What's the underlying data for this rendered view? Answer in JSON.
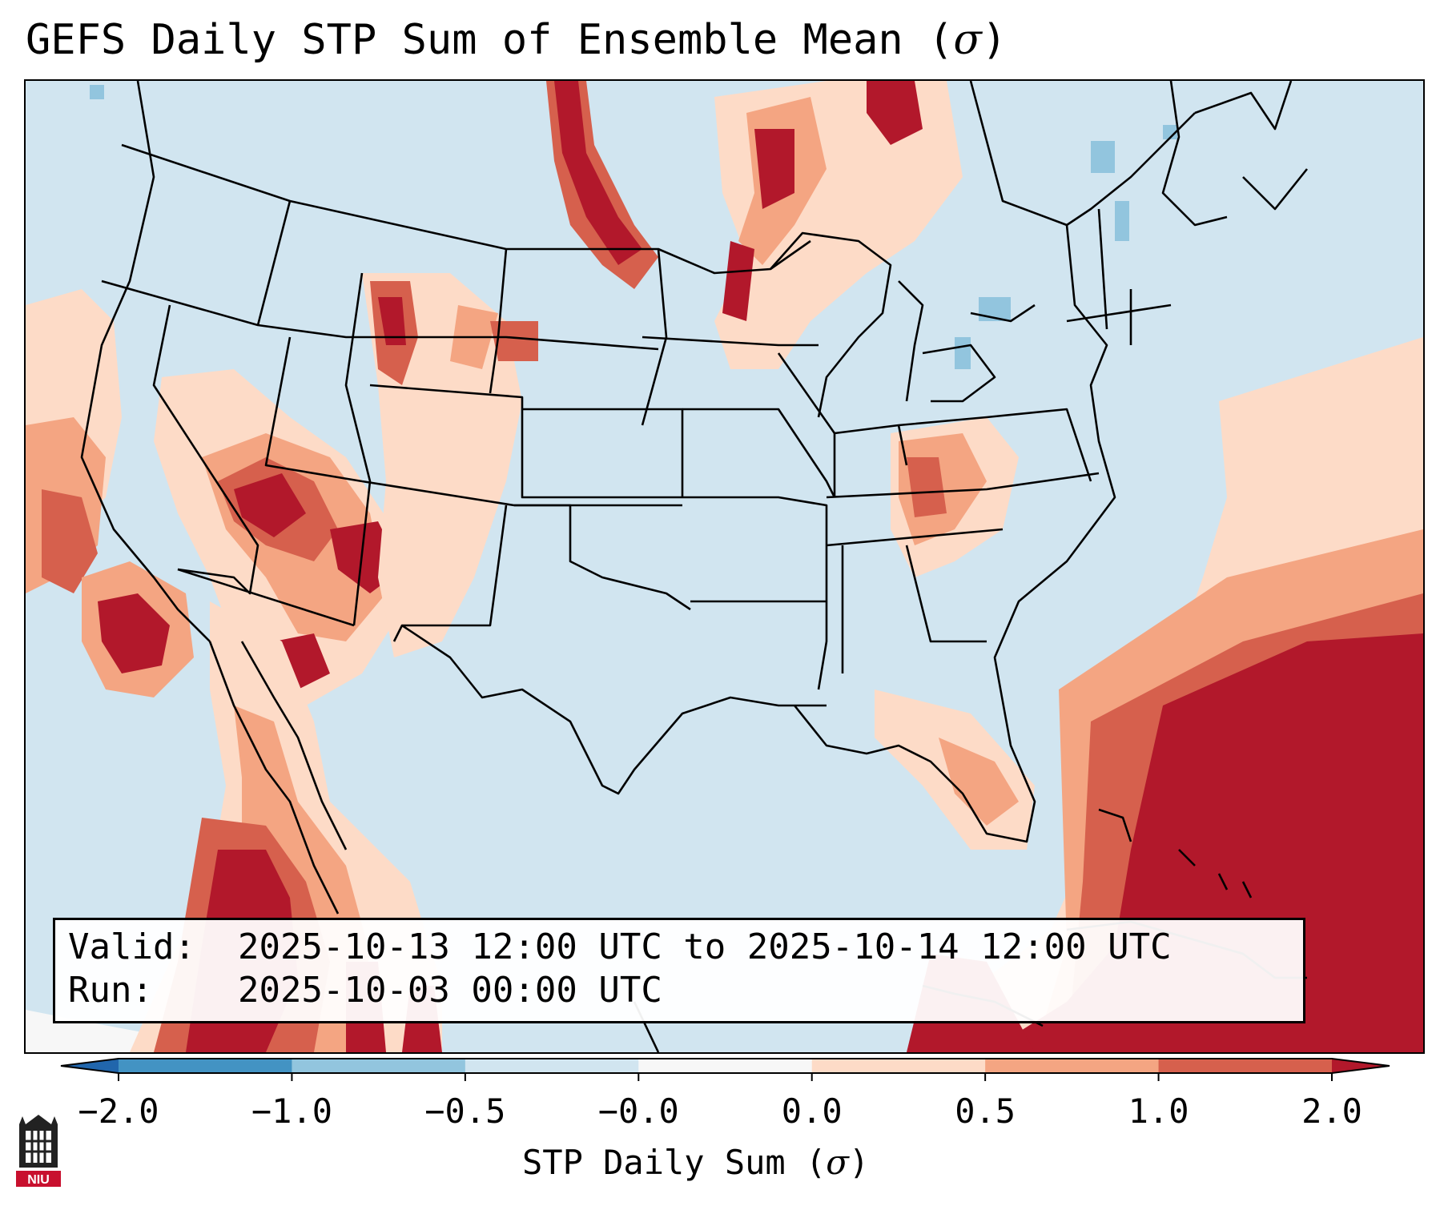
{
  "title": {
    "text": "GEFS Daily STP Sum of Ensemble Mean (",
    "symbol": "σ",
    "close": ")"
  },
  "info": {
    "valid_label": "Valid:",
    "valid_value": "2025-10-13 12:00 UTC to 2025-10-14 12:00 UTC",
    "run_label": "Run:",
    "run_value": "2025-10-03 00:00 UTC"
  },
  "colorbar": {
    "label_text": "STP Daily Sum (",
    "label_symbol": "σ",
    "label_close": ")",
    "ticks": [
      "−2.0",
      "−1.0",
      "−0.5",
      "−0.0",
      "0.0",
      "0.5",
      "1.0",
      "2.0"
    ],
    "bins": [
      {
        "color": "#2166ac"
      },
      {
        "color": "#4393c3"
      },
      {
        "color": "#92c5de"
      },
      {
        "color": "#d1e5f0"
      },
      {
        "color": "#f7f7f7"
      },
      {
        "color": "#fddbc7"
      },
      {
        "color": "#f4a582"
      },
      {
        "color": "#d6604d"
      },
      {
        "color": "#b2182b"
      }
    ]
  },
  "map": {
    "background_color": "#d1e5f0",
    "features": [
      "state-borders",
      "country-borders",
      "coastlines"
    ]
  },
  "logo": {
    "text": "NIU"
  }
}
